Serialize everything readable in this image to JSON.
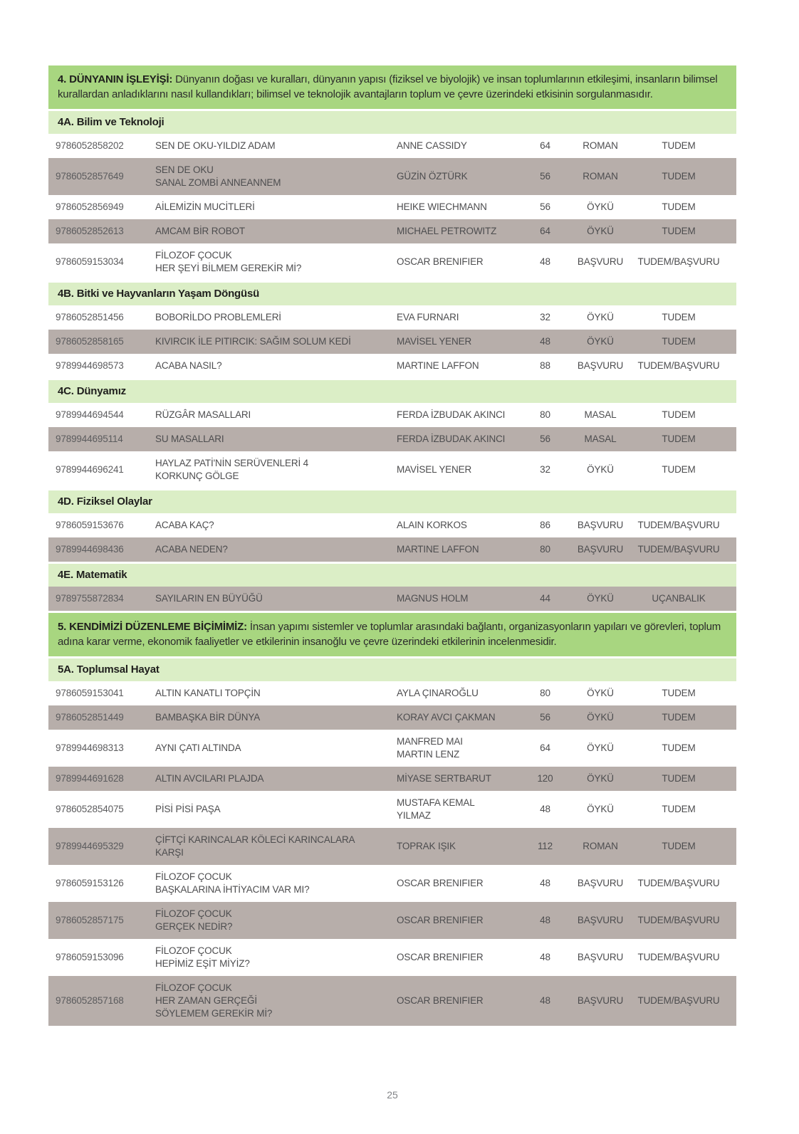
{
  "colors": {
    "section_band_green": "#a8d680",
    "subsection_band_green": "#dbeec6",
    "shaded_row_gray": "#b7aeaa"
  },
  "page_number": "25",
  "sections": [
    {
      "type": "section",
      "label": "4. DÜNYANIN İŞLEYİŞİ:",
      "description": "Dünyanın doğası ve kuralları, dünyanın yapısı (fiziksel ve biyolojik) ve insan toplumlarının etkileşimi, insanların bilimsel kurallardan anladıklarını nasıl kullandıkları; bilimsel ve teknolojik avantajların toplum ve çevre üzerindeki etkisinin sorgulanmasıdır."
    },
    {
      "type": "subsection",
      "label": "4A. Bilim ve Teknoloji",
      "rows": [
        {
          "isbn": "9786052858202",
          "title": "SEN DE OKU-YILDIZ ADAM",
          "author": "ANNE CASSIDY",
          "pages": "64",
          "genre": "ROMAN",
          "publisher": "TUDEM",
          "shaded": false
        },
        {
          "isbn": "9786052857649",
          "title": "SEN DE OKU\nSANAL ZOMBİ ANNEANNEM",
          "author": "GÜZİN ÖZTÜRK",
          "pages": "56",
          "genre": "ROMAN",
          "publisher": "TUDEM",
          "shaded": true
        },
        {
          "isbn": "9786052856949",
          "title": "AİLEMİZİN MUCİTLERİ",
          "author": "HEIKE WIECHMANN",
          "pages": "56",
          "genre": "ÖYKÜ",
          "publisher": "TUDEM",
          "shaded": false
        },
        {
          "isbn": "9786052852613",
          "title": "AMCAM BİR ROBOT",
          "author": "MICHAEL PETROWITZ",
          "pages": "64",
          "genre": "ÖYKÜ",
          "publisher": "TUDEM",
          "shaded": true
        },
        {
          "isbn": "9786059153034",
          "title": "FİLOZOF ÇOCUK\nHER ŞEYİ BİLMEM GEREKİR Mİ?",
          "author": "OSCAR BRENIFIER",
          "pages": "48",
          "genre": "BAŞVURU",
          "publisher": "TUDEM/BAŞVURU",
          "shaded": false
        }
      ]
    },
    {
      "type": "subsection",
      "label": "4B. Bitki ve Hayvanların Yaşam Döngüsü",
      "rows": [
        {
          "isbn": "9786052851456",
          "title": "BOBORİLDO PROBLEMLERİ",
          "author": "EVA FURNARI",
          "pages": "32",
          "genre": "ÖYKÜ",
          "publisher": "TUDEM",
          "shaded": false
        },
        {
          "isbn": "9786052858165",
          "title": "KIVIRCIK İLE PITIRCIK: SAĞIM SOLUM KEDİ",
          "author": "MAVİSEL YENER",
          "pages": "48",
          "genre": "ÖYKÜ",
          "publisher": "TUDEM",
          "shaded": true
        },
        {
          "isbn": "9789944698573",
          "title": "ACABA NASIL?",
          "author": "MARTINE LAFFON",
          "pages": "88",
          "genre": "BAŞVURU",
          "publisher": "TUDEM/BAŞVURU",
          "shaded": false
        }
      ]
    },
    {
      "type": "subsection",
      "label": "4C. Dünyamız",
      "rows": [
        {
          "isbn": "9789944694544",
          "title": "RÜZGÂR MASALLARI",
          "author": "FERDA İZBUDAK AKINCI",
          "pages": "80",
          "genre": "MASAL",
          "publisher": "TUDEM",
          "shaded": false
        },
        {
          "isbn": "9789944695114",
          "title": "SU MASALLARI",
          "author": "FERDA İZBUDAK AKINCI",
          "pages": "56",
          "genre": "MASAL",
          "publisher": "TUDEM",
          "shaded": true
        },
        {
          "isbn": "9789944696241",
          "title": "HAYLAZ PATİ'NİN SERÜVENLERİ 4\nKORKUNÇ GÖLGE",
          "author": "MAVİSEL YENER",
          "pages": "32",
          "genre": "ÖYKÜ",
          "publisher": "TUDEM",
          "shaded": false
        }
      ]
    },
    {
      "type": "subsection",
      "label": "4D. Fiziksel Olaylar",
      "rows": [
        {
          "isbn": "9786059153676",
          "title": "ACABA KAÇ?",
          "author": "ALAIN KORKOS",
          "pages": "86",
          "genre": "BAŞVURU",
          "publisher": "TUDEM/BAŞVURU",
          "shaded": false
        },
        {
          "isbn": "9789944698436",
          "title": "ACABA NEDEN?",
          "author": "MARTINE LAFFON",
          "pages": "80",
          "genre": "BAŞVURU",
          "publisher": "TUDEM/BAŞVURU",
          "shaded": true
        }
      ]
    },
    {
      "type": "subsection",
      "label": "4E. Matematik",
      "rows": [
        {
          "isbn": "9789755872834",
          "title": "SAYILARIN EN BÜYÜĞÜ",
          "author": "MAGNUS HOLM",
          "pages": "44",
          "genre": "ÖYKÜ",
          "publisher": "UÇANBALIK",
          "shaded": true
        }
      ]
    },
    {
      "type": "section",
      "label": "5. KENDİMİZİ DÜZENLEME BİÇİMİMİZ:",
      "description": "İnsan yapımı sistemler ve toplumlar arasındaki bağlantı, organizasyonların yapıları ve görevleri, toplum adına karar verme, ekonomik faaliyetler ve etkilerinin insanoğlu ve çevre üzerindeki etkilerinin incelenmesidir."
    },
    {
      "type": "subsection",
      "label": "5A. Toplumsal Hayat",
      "rows": [
        {
          "isbn": "9786059153041",
          "title": "ALTIN KANATLI TOPÇİN",
          "author": "AYLA ÇINAROĞLU",
          "pages": "80",
          "genre": "ÖYKÜ",
          "publisher": "TUDEM",
          "shaded": false
        },
        {
          "isbn": "9786052851449",
          "title": "BAMBAŞKA BİR DÜNYA",
          "author": "KORAY AVCI ÇAKMAN",
          "pages": "56",
          "genre": "ÖYKÜ",
          "publisher": "TUDEM",
          "shaded": true
        },
        {
          "isbn": "9789944698313",
          "title": "AYNI ÇATI ALTINDA",
          "author": "MANFRED MAI\nMARTIN LENZ",
          "pages": "64",
          "genre": "ÖYKÜ",
          "publisher": "TUDEM",
          "shaded": false
        },
        {
          "isbn": "9789944691628",
          "title": "ALTIN AVCILARI PLAJDA",
          "author": "MİYASE SERTBARUT",
          "pages": "120",
          "genre": "ÖYKÜ",
          "publisher": "TUDEM",
          "shaded": true
        },
        {
          "isbn": "9786052854075",
          "title": "PİSİ PİSİ PAŞA",
          "author": "MUSTAFA KEMAL\nYILMAZ",
          "pages": "48",
          "genre": "ÖYKÜ",
          "publisher": "TUDEM",
          "shaded": false
        },
        {
          "isbn": "9789944695329",
          "title": "ÇİFTÇİ KARINCALAR KÖLECİ KARINCALARA\nKARŞI",
          "author": "TOPRAK IŞIK",
          "pages": "112",
          "genre": "ROMAN",
          "publisher": "TUDEM",
          "shaded": true
        },
        {
          "isbn": "9786059153126",
          "title": "FİLOZOF ÇOCUK\nBAŞKALARINA İHTİYACIM VAR MI?",
          "author": "OSCAR BRENIFIER",
          "pages": "48",
          "genre": "BAŞVURU",
          "publisher": "TUDEM/BAŞVURU",
          "shaded": false
        },
        {
          "isbn": "9786052857175",
          "title": "FİLOZOF ÇOCUK\nGERÇEK NEDİR?",
          "author": "OSCAR BRENIFIER",
          "pages": "48",
          "genre": "BAŞVURU",
          "publisher": "TUDEM/BAŞVURU",
          "shaded": true
        },
        {
          "isbn": "9786059153096",
          "title": "FİLOZOF ÇOCUK\nHEPİMİZ EŞİT MİYİZ?",
          "author": "OSCAR BRENIFIER",
          "pages": "48",
          "genre": "BAŞVURU",
          "publisher": "TUDEM/BAŞVURU",
          "shaded": false
        },
        {
          "isbn": "9786052857168",
          "title": "FİLOZOF ÇOCUK\nHER ZAMAN GERÇEĞİ\nSÖYLEMEM GEREKİR Mİ?",
          "author": "OSCAR BRENIFIER",
          "pages": "48",
          "genre": "BAŞVURU",
          "publisher": "TUDEM/BAŞVURU",
          "shaded": true
        }
      ]
    }
  ]
}
